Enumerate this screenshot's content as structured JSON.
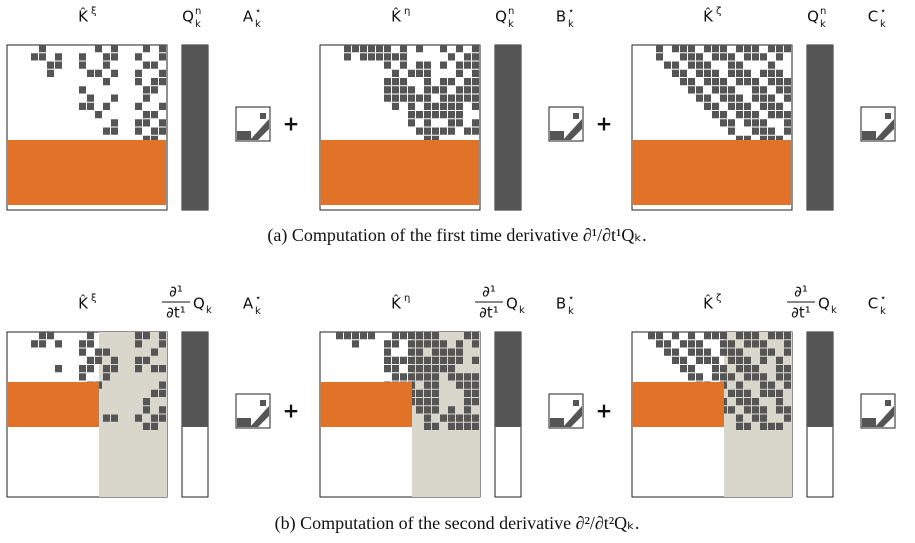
{
  "panels": [
    {
      "caption": "(a) Computation of the first time derivative ∂¹/∂t¹Qₖ.",
      "operators": [
        "+",
        "+"
      ],
      "groups": [
        {
          "matrix": {
            "base": "K̂",
            "sup": "ξ"
          },
          "vector": {
            "base": "Q",
            "sup": "n",
            "sub": "k"
          },
          "coeff": {
            "base": "A",
            "sup": "⋆",
            "sub": "k"
          }
        },
        {
          "matrix": {
            "base": "K̂",
            "sup": "η"
          },
          "vector": {
            "base": "Q",
            "sup": "n",
            "sub": "k"
          },
          "coeff": {
            "base": "B",
            "sup": "⋆",
            "sub": "k"
          }
        },
        {
          "matrix": {
            "base": "K̂",
            "sup": "ζ"
          },
          "vector": {
            "base": "Q",
            "sup": "n",
            "sub": "k"
          },
          "coeff": {
            "base": "C",
            "sup": "⋆",
            "sub": "k"
          }
        }
      ]
    },
    {
      "caption": "(b) Computation of the second derivative ∂²/∂t²Qₖ.",
      "operators": [
        "+",
        "+"
      ],
      "groups": [
        {
          "matrix": {
            "base": "K̂",
            "sup": "ξ"
          },
          "vector": {
            "num": "∂¹",
            "den": "∂t¹",
            "base": "Q",
            "sub": "k"
          },
          "coeff": {
            "base": "A",
            "sup": "⋆",
            "sub": "k"
          }
        },
        {
          "matrix": {
            "base": "K̂",
            "sup": "η"
          },
          "vector": {
            "num": "∂¹",
            "den": "∂t¹",
            "base": "Q",
            "sub": "k"
          },
          "coeff": {
            "base": "B",
            "sup": "⋆",
            "sub": "k"
          }
        },
        {
          "matrix": {
            "base": "K̂",
            "sup": "ζ"
          },
          "vector": {
            "num": "∂¹",
            "den": "∂t¹",
            "base": "Q",
            "sub": "k"
          },
          "coeff": {
            "base": "C",
            "sup": "⋆",
            "sub": "k"
          }
        }
      ]
    }
  ]
}
